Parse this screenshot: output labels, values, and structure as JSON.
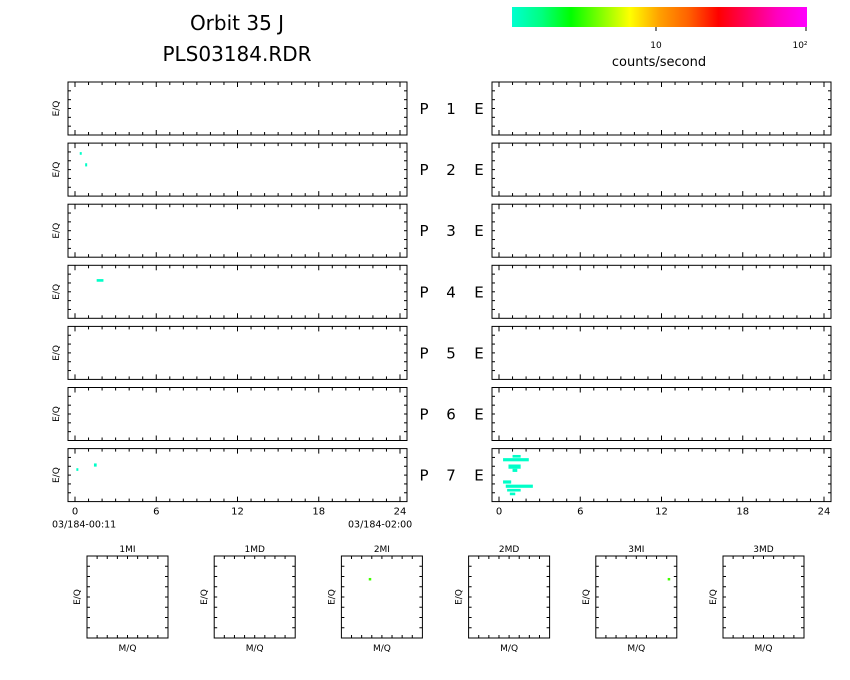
{
  "header": {
    "title": "Orbit 35 J",
    "subtitle": "PLS03184.RDR"
  },
  "colorbar": {
    "label": "counts/second",
    "tick_labels": [
      "10",
      "10²"
    ],
    "colors": [
      "#00ffd0",
      "#00ff80",
      "#00ff00",
      "#80ff00",
      "#ffff00",
      "#ffa000",
      "#ff6000",
      "#ff0000",
      "#ff0060",
      "#ff00c0",
      "#ff00ff"
    ]
  },
  "chart_data": {
    "type": "scatter",
    "colors": {
      "cyan": "#00ffc8",
      "green": "#40ff00",
      "axis": "#000000"
    },
    "time_panels": {
      "ylabel": "E/Q",
      "x_ticks": [
        0,
        6,
        12,
        18,
        24
      ],
      "x_tick_labels": [
        "0",
        "6",
        "12",
        "18",
        "24"
      ],
      "xlim": [
        0,
        24
      ],
      "ylim": [
        0,
        1
      ],
      "start_label": "03/184-00:11",
      "end_label": "03/184-02:00",
      "rows": [
        {
          "label": "P",
          "number": "1",
          "sep": "E",
          "left_points": [],
          "right_points": []
        },
        {
          "label": "P",
          "number": "2",
          "sep": "E",
          "left_points": [
            {
              "x": 0.35,
              "y": 0.83,
              "w": 0.1,
              "h": 0.05
            },
            {
              "x": 0.75,
              "y": 0.62,
              "w": 0.12,
              "h": 0.06
            }
          ],
          "right_points": []
        },
        {
          "label": "P",
          "number": "3",
          "sep": "E",
          "left_points": [],
          "right_points": []
        },
        {
          "label": "P",
          "number": "4",
          "sep": "E",
          "left_points": [
            {
              "x": 1.6,
              "y": 0.74,
              "w": 0.5,
              "h": 0.05
            }
          ],
          "right_points": []
        },
        {
          "label": "P",
          "number": "5",
          "sep": "E",
          "left_points": [],
          "right_points": []
        },
        {
          "label": "P",
          "number": "6",
          "sep": "E",
          "left_points": [],
          "right_points": []
        },
        {
          "label": "P",
          "number": "7",
          "sep": "E",
          "left_points": [
            {
              "x": 0.1,
              "y": 0.63,
              "w": 0.12,
              "h": 0.05
            },
            {
              "x": 1.4,
              "y": 0.72,
              "w": 0.2,
              "h": 0.06
            }
          ],
          "right_points": [
            {
              "x": 0.3,
              "y": 0.82,
              "w": 1.9,
              "h": 0.06
            },
            {
              "x": 1.0,
              "y": 0.88,
              "w": 0.6,
              "h": 0.05
            },
            {
              "x": 0.7,
              "y": 0.7,
              "w": 0.9,
              "h": 0.08
            },
            {
              "x": 1.0,
              "y": 0.62,
              "w": 0.35,
              "h": 0.06
            },
            {
              "x": 0.3,
              "y": 0.4,
              "w": 0.6,
              "h": 0.06
            },
            {
              "x": 0.5,
              "y": 0.32,
              "w": 2.0,
              "h": 0.06
            },
            {
              "x": 0.6,
              "y": 0.24,
              "w": 1.0,
              "h": 0.05
            },
            {
              "x": 0.8,
              "y": 0.17,
              "w": 0.4,
              "h": 0.05
            }
          ]
        }
      ]
    },
    "mq_panels": {
      "xlabel": "M/Q",
      "ylabel": "E/Q",
      "xlim": [
        0,
        1
      ],
      "ylim": [
        0,
        1
      ],
      "panels": [
        {
          "title": "1MI",
          "points": []
        },
        {
          "title": "1MD",
          "points": []
        },
        {
          "title": "2MI",
          "points": [
            {
              "x": 0.35,
              "y": 0.72
            }
          ]
        },
        {
          "title": "2MD",
          "points": []
        },
        {
          "title": "3MI",
          "points": [
            {
              "x": 0.9,
              "y": 0.72
            }
          ]
        },
        {
          "title": "3MD",
          "points": []
        }
      ]
    }
  }
}
